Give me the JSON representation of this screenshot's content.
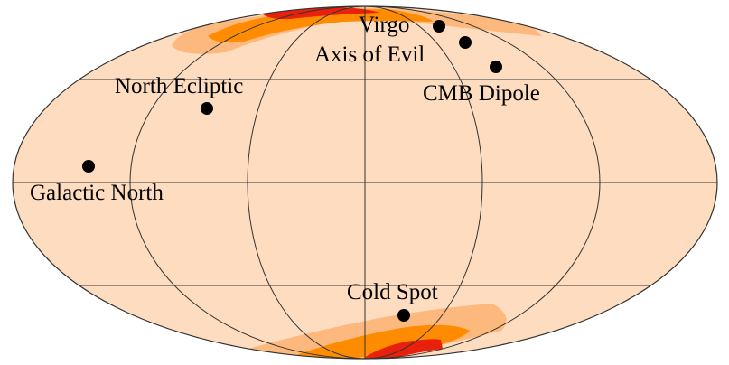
{
  "points": [
    {
      "label": "Virgo"
    },
    {
      "label": "Axis of Evil"
    },
    {
      "label": "CMB Dipole"
    },
    {
      "label": "North Ecliptic"
    },
    {
      "label": "Galactic North"
    },
    {
      "label": "Cold Spot"
    }
  ]
}
